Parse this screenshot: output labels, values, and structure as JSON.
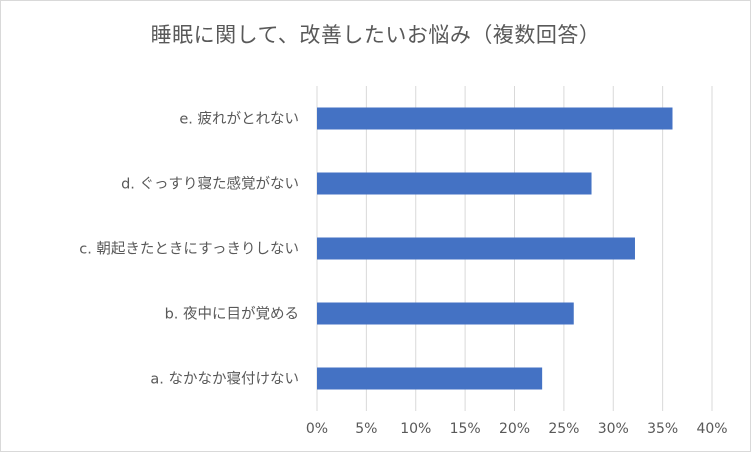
{
  "chart_data": {
    "type": "bar",
    "orientation": "horizontal",
    "title": "睡眠に関して、改善したいお悩み（複数回答）",
    "categories": [
      "e. 疲れがとれない",
      "d. ぐっすり寝た感覚がない",
      "c. 朝起きたときにすっきりしない",
      "b. 夜中に目が覚める",
      "a. なかなか寝付けない"
    ],
    "values": [
      36,
      27.8,
      32.2,
      26,
      22.8
    ],
    "xlim": [
      0,
      40
    ],
    "x_ticks": [
      "0%",
      "5%",
      "10%",
      "15%",
      "20%",
      "25%",
      "30%",
      "35%",
      "40%"
    ],
    "grid": "vertical",
    "bar_color": "#4472c4",
    "legend": "none"
  }
}
